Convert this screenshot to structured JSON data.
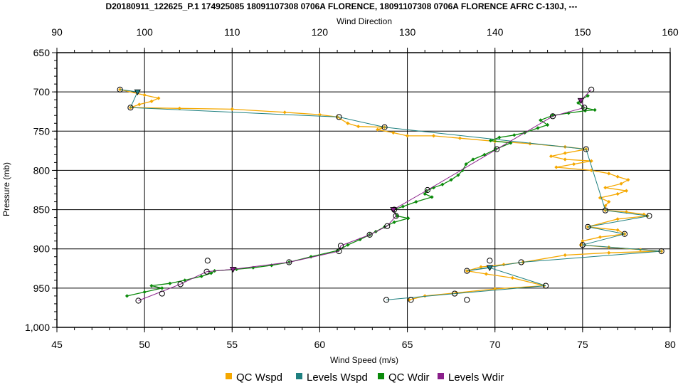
{
  "chart_data": {
    "type": "line",
    "title": "D20180911_122625_P.1 174925085 18091107308 0706A FLORENCE, 18091107308 0706A FLORENCE AFRC C-130J, ---",
    "top_axis": {
      "label": "Wind Direction",
      "range": [
        90,
        160
      ],
      "ticks": [
        "90",
        "100",
        "110",
        "120",
        "130",
        "140",
        "150",
        "160"
      ]
    },
    "bottom_axis": {
      "label": "Wind Speed (m/s)",
      "range": [
        45,
        80
      ],
      "ticks": [
        "45",
        "50",
        "55",
        "60",
        "65",
        "70",
        "75",
        "80"
      ]
    },
    "y_axis": {
      "label": "Pressure (mb)",
      "range": [
        650,
        1000
      ],
      "inverted": true,
      "ticks": [
        "650",
        "700",
        "750",
        "800",
        "850",
        "900",
        "950",
        "1,000"
      ]
    },
    "grid": true,
    "legend_position": "bottom",
    "series": [
      {
        "name": "QC Wspd",
        "axis": "speed",
        "color": "#f5a800",
        "marker": "diamond",
        "points": [
          [
            48.6,
            697
          ],
          [
            50.0,
            704
          ],
          [
            50.8,
            708
          ],
          [
            50.4,
            712
          ],
          [
            49.7,
            716
          ],
          [
            49.2,
            720
          ],
          [
            52.0,
            721
          ],
          [
            55.0,
            722
          ],
          [
            58.0,
            726
          ],
          [
            60.0,
            729
          ],
          [
            61.0,
            732
          ],
          [
            61.6,
            740
          ],
          [
            62.2,
            744
          ],
          [
            63.7,
            745
          ],
          [
            63.3,
            748
          ],
          [
            64.2,
            752
          ],
          [
            65.0,
            756
          ],
          [
            66.5,
            756
          ],
          [
            68.0,
            759
          ],
          [
            70.0,
            763
          ],
          [
            72.0,
            766
          ],
          [
            74.0,
            770
          ],
          [
            75.2,
            773
          ],
          [
            74.0,
            778
          ],
          [
            73.2,
            782
          ],
          [
            74.0,
            786
          ],
          [
            75.5,
            788
          ],
          [
            74.5,
            792
          ],
          [
            73.5,
            796
          ],
          [
            75.5,
            800
          ],
          [
            76.5,
            804
          ],
          [
            77.0,
            808
          ],
          [
            77.6,
            812
          ],
          [
            77.2,
            817
          ],
          [
            76.3,
            822
          ],
          [
            77.5,
            826
          ],
          [
            77.0,
            830
          ],
          [
            76.0,
            835
          ],
          [
            76.5,
            840
          ],
          [
            76.3,
            845
          ],
          [
            76.3,
            851
          ],
          [
            77.5,
            853
          ],
          [
            78.5,
            856
          ],
          [
            78.7,
            858
          ],
          [
            77.0,
            862
          ],
          [
            75.3,
            872
          ],
          [
            77.0,
            876
          ],
          [
            77.4,
            881
          ],
          [
            76.0,
            885
          ],
          [
            75.0,
            890
          ],
          [
            74.9,
            895
          ],
          [
            76.5,
            898
          ],
          [
            78.3,
            901
          ],
          [
            79.5,
            903
          ],
          [
            76.5,
            905
          ],
          [
            74.0,
            908
          ],
          [
            71.6,
            917
          ],
          [
            70.5,
            920
          ],
          [
            69.2,
            923
          ],
          [
            68.4,
            928
          ],
          [
            69.5,
            932
          ],
          [
            71.0,
            937
          ],
          [
            72.8,
            947
          ],
          [
            70.0,
            951
          ],
          [
            67.8,
            956
          ],
          [
            66.0,
            960
          ],
          [
            65.1,
            965
          ]
        ]
      },
      {
        "name": "Levels Wspd",
        "axis": "speed",
        "color": "#1f8080",
        "points": [
          [
            48.6,
            697
          ],
          [
            49.6,
            700
          ],
          [
            49.2,
            720
          ],
          [
            61.1,
            732
          ],
          [
            63.7,
            745
          ],
          [
            75.2,
            773
          ],
          [
            76.3,
            851
          ],
          [
            78.8,
            858
          ],
          [
            75.3,
            872
          ],
          [
            77.4,
            881
          ],
          [
            75.0,
            895
          ],
          [
            79.5,
            903
          ],
          [
            71.5,
            917
          ],
          [
            68.4,
            928
          ],
          [
            69.7,
            924
          ],
          [
            72.9,
            947
          ],
          [
            67.7,
            957
          ],
          [
            63.8,
            965
          ]
        ]
      },
      {
        "name": "QC Wdir",
        "axis": "dir",
        "color": "#0a8a0a",
        "marker": "diamond",
        "points": [
          [
            150.6,
            705
          ],
          [
            149.8,
            710
          ],
          [
            149.5,
            714
          ],
          [
            150.1,
            720
          ],
          [
            151.4,
            723
          ],
          [
            150.3,
            724
          ],
          [
            148.4,
            727
          ],
          [
            146.6,
            730
          ],
          [
            145.2,
            736
          ],
          [
            146.0,
            742
          ],
          [
            144.9,
            746
          ],
          [
            143.4,
            752
          ],
          [
            142.2,
            755
          ],
          [
            140.5,
            758
          ],
          [
            139.5,
            762
          ],
          [
            141.8,
            765
          ],
          [
            140.1,
            773
          ],
          [
            138.8,
            780
          ],
          [
            137.5,
            786
          ],
          [
            136.7,
            792
          ],
          [
            136.3,
            800
          ],
          [
            135.8,
            806
          ],
          [
            135.0,
            812
          ],
          [
            134.0,
            818
          ],
          [
            133.0,
            822
          ],
          [
            132.2,
            826
          ],
          [
            132.0,
            830
          ],
          [
            132.8,
            834
          ],
          [
            131.0,
            840
          ],
          [
            129.5,
            846
          ],
          [
            128.4,
            850
          ],
          [
            128.8,
            858
          ],
          [
            130.1,
            861
          ],
          [
            128.5,
            866
          ],
          [
            127.4,
            872
          ],
          [
            126.4,
            878
          ],
          [
            125.7,
            882
          ],
          [
            124.6,
            888
          ],
          [
            123.2,
            895
          ],
          [
            122.1,
            902
          ],
          [
            119.0,
            910
          ],
          [
            116.5,
            917
          ],
          [
            114.5,
            921
          ],
          [
            112.4,
            924
          ],
          [
            110.5,
            926
          ],
          [
            108.0,
            928
          ],
          [
            107.6,
            931
          ],
          [
            106.5,
            935
          ],
          [
            104.6,
            940
          ],
          [
            102.9,
            944
          ],
          [
            100.8,
            947
          ],
          [
            102.0,
            950
          ],
          [
            100.0,
            955
          ],
          [
            98.0,
            960
          ]
        ]
      },
      {
        "name": "Levels Wdir",
        "axis": "dir",
        "color": "#8a1f8a",
        "points": [
          [
            151.0,
            697
          ],
          [
            149.8,
            711
          ],
          [
            150.2,
            720
          ],
          [
            146.6,
            731
          ],
          [
            140.2,
            773
          ],
          [
            132.3,
            825
          ],
          [
            128.4,
            850
          ],
          [
            128.7,
            858
          ],
          [
            127.7,
            871
          ],
          [
            125.7,
            882
          ],
          [
            122.4,
            896
          ],
          [
            122.2,
            903
          ],
          [
            116.5,
            917
          ],
          [
            110.1,
            926
          ],
          [
            107.1,
            929
          ],
          [
            104.1,
            945
          ],
          [
            99.3,
            966
          ]
        ]
      }
    ],
    "markers": {
      "circle_speed": [
        [
          48.6,
          697
        ],
        [
          49.2,
          720
        ],
        [
          61.1,
          732
        ],
        [
          63.7,
          745
        ],
        [
          75.2,
          773
        ],
        [
          76.3,
          851
        ],
        [
          78.8,
          858
        ],
        [
          75.3,
          872
        ],
        [
          77.4,
          881
        ],
        [
          75.0,
          895
        ],
        [
          79.5,
          903
        ],
        [
          71.5,
          917
        ],
        [
          68.4,
          928
        ],
        [
          72.9,
          947
        ],
        [
          67.7,
          957
        ],
        [
          63.8,
          965
        ],
        [
          65.2,
          965
        ],
        [
          68.4,
          965
        ],
        [
          69.7,
          915
        ],
        [
          53.6,
          915
        ],
        [
          51.0,
          957
        ]
      ],
      "triangle_speed": [
        [
          49.6,
          700
        ],
        [
          69.7,
          924
        ]
      ],
      "circle_dir": [
        [
          151.0,
          697
        ],
        [
          150.2,
          720
        ],
        [
          146.6,
          731
        ],
        [
          140.2,
          773
        ],
        [
          132.3,
          825
        ],
        [
          128.7,
          858
        ],
        [
          127.7,
          871
        ],
        [
          125.7,
          882
        ],
        [
          122.4,
          896
        ],
        [
          122.2,
          903
        ],
        [
          116.5,
          917
        ],
        [
          107.1,
          929
        ],
        [
          104.1,
          945
        ],
        [
          99.3,
          966
        ],
        [
          128.5,
          850
        ]
      ],
      "triangle_dir": [
        [
          149.8,
          711
        ],
        [
          110.1,
          926
        ],
        [
          128.4,
          850
        ]
      ]
    }
  },
  "legend": [
    {
      "label": "QC Wspd",
      "color": "#f5a800"
    },
    {
      "label": "Levels Wspd",
      "color": "#1f8080"
    },
    {
      "label": "QC Wdir",
      "color": "#0a8a0a"
    },
    {
      "label": "Levels Wdir",
      "color": "#8a1f8a"
    }
  ]
}
